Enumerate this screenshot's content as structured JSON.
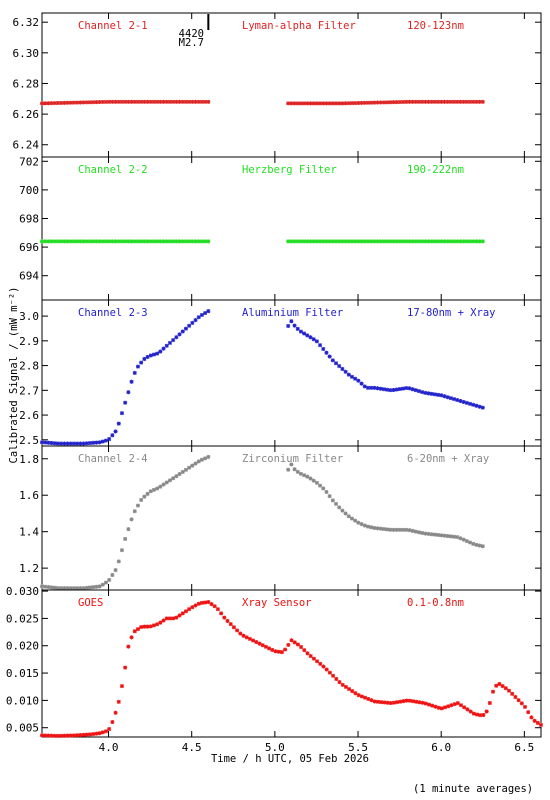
{
  "figure": {
    "ylabel": "Calibrated Signal / (mW m⁻²)",
    "xlabel": "Time / h UTC, 05 Feb 2026",
    "footnote": "(1 minute averages)",
    "event_marker": {
      "x": 4.6,
      "label_lines": [
        "4420",
        "M2.7"
      ]
    }
  },
  "chart_data": [
    {
      "type": "scatter",
      "color": "#dd2222",
      "labels": [
        "Channel 2-1",
        "Lyman-alpha Filter",
        "120-123nm"
      ],
      "ylim": [
        6.232,
        6.326
      ],
      "yticks": [
        6.24,
        6.26,
        6.28,
        6.3,
        6.32
      ],
      "tick_decimals": 2,
      "segments": [
        {
          "x": [
            3.6,
            4.0,
            4.3,
            4.6
          ],
          "y": [
            6.267,
            6.268,
            6.268,
            6.268
          ]
        },
        {
          "x": [
            5.08,
            5.4,
            5.8,
            6.0,
            6.25
          ],
          "y": [
            6.267,
            6.267,
            6.268,
            6.268,
            6.268
          ]
        }
      ]
    },
    {
      "type": "scatter",
      "color": "#22dd22",
      "labels": [
        "Channel 2-2",
        "Herzberg Filter",
        "190-222nm"
      ],
      "ylim": [
        692.3,
        702.3
      ],
      "yticks": [
        694,
        696,
        698,
        700,
        702
      ],
      "tick_decimals": 0,
      "segments": [
        {
          "x": [
            3.6,
            4.6
          ],
          "y": [
            696.4,
            696.4
          ]
        },
        {
          "x": [
            5.08,
            5.6,
            6.25
          ],
          "y": [
            696.4,
            696.4,
            696.4
          ]
        }
      ]
    },
    {
      "type": "scatter",
      "color": "#2222cc",
      "labels": [
        "Channel 2-3",
        "Aluminium Filter",
        "17-80nm + Xray"
      ],
      "ylim": [
        2.475,
        3.065
      ],
      "yticks": [
        2.5,
        2.6,
        2.7,
        2.8,
        2.9,
        3.0
      ],
      "tick_decimals": 1,
      "segments": [
        {
          "x": [
            3.6,
            3.7,
            3.85,
            3.95,
            4.0,
            4.05,
            4.1,
            4.15,
            4.18,
            4.22,
            4.25,
            4.3,
            4.35,
            4.4,
            4.45,
            4.5,
            4.55,
            4.6
          ],
          "y": [
            2.49,
            2.485,
            2.485,
            2.49,
            2.5,
            2.54,
            2.65,
            2.76,
            2.8,
            2.83,
            2.84,
            2.85,
            2.88,
            2.91,
            2.94,
            2.97,
            3.0,
            3.02
          ]
        },
        {
          "x": [
            5.08,
            5.1,
            5.12,
            5.15,
            5.2,
            5.25,
            5.3,
            5.35,
            5.4,
            5.45,
            5.5,
            5.55,
            5.6,
            5.7,
            5.8,
            5.9,
            6.0,
            6.1,
            6.2,
            6.25
          ],
          "y": [
            2.96,
            2.98,
            2.96,
            2.94,
            2.92,
            2.9,
            2.86,
            2.82,
            2.79,
            2.76,
            2.74,
            2.71,
            2.71,
            2.7,
            2.71,
            2.69,
            2.68,
            2.66,
            2.64,
            2.63
          ]
        }
      ]
    },
    {
      "type": "scatter",
      "color": "#888888",
      "labels": [
        "Channel 2-4",
        "Zirconium Filter",
        "6-20nm + Xray"
      ],
      "ylim": [
        1.08,
        1.87
      ],
      "yticks": [
        1.2,
        1.4,
        1.6,
        1.8
      ],
      "tick_decimals": 1,
      "segments": [
        {
          "x": [
            3.6,
            3.7,
            3.85,
            3.95,
            4.0,
            4.05,
            4.1,
            4.15,
            4.2,
            4.25,
            4.3,
            4.35,
            4.4,
            4.45,
            4.5,
            4.55,
            4.6
          ],
          "y": [
            1.1,
            1.09,
            1.09,
            1.1,
            1.13,
            1.2,
            1.36,
            1.5,
            1.58,
            1.62,
            1.64,
            1.67,
            1.7,
            1.73,
            1.76,
            1.79,
            1.81
          ]
        },
        {
          "x": [
            5.08,
            5.1,
            5.12,
            5.15,
            5.2,
            5.25,
            5.3,
            5.35,
            5.4,
            5.45,
            5.5,
            5.55,
            5.6,
            5.7,
            5.8,
            5.9,
            6.0,
            6.1,
            6.2,
            6.25
          ],
          "y": [
            1.74,
            1.77,
            1.74,
            1.72,
            1.7,
            1.67,
            1.63,
            1.57,
            1.52,
            1.48,
            1.45,
            1.43,
            1.42,
            1.41,
            1.41,
            1.39,
            1.38,
            1.37,
            1.33,
            1.32
          ]
        }
      ]
    },
    {
      "type": "scatter",
      "color": "#ee1111",
      "labels": [
        "GOES",
        "Xray Sensor",
        "0.1-0.8nm"
      ],
      "ylim": [
        0.0033,
        0.0302
      ],
      "yticks": [
        0.005,
        0.01,
        0.015,
        0.02,
        0.025,
        0.03
      ],
      "tick_decimals": 3,
      "xlim": [
        3.6,
        6.6
      ],
      "xticks": [
        4.0,
        4.5,
        5.0,
        5.5,
        6.0,
        6.5
      ],
      "segments": [
        {
          "x": [
            3.6,
            3.7,
            3.8,
            3.9,
            3.95,
            4.0,
            4.03,
            4.06,
            4.09,
            4.12,
            4.15,
            4.2,
            4.25,
            4.3,
            4.35,
            4.4,
            4.45,
            4.5,
            4.55,
            4.6,
            4.65,
            4.7,
            4.8,
            4.9,
            5.0,
            5.05,
            5.1,
            5.15,
            5.2,
            5.3,
            5.4,
            5.5,
            5.6,
            5.7,
            5.8,
            5.9,
            6.0,
            6.05,
            6.1,
            6.15,
            6.2,
            6.25,
            6.28,
            6.32,
            6.35,
            6.4,
            6.45,
            6.5,
            6.55,
            6.6
          ],
          "y": [
            0.0036,
            0.0035,
            0.0036,
            0.0038,
            0.004,
            0.0045,
            0.0065,
            0.0095,
            0.014,
            0.02,
            0.0225,
            0.0235,
            0.0235,
            0.024,
            0.025,
            0.025,
            0.026,
            0.027,
            0.0278,
            0.028,
            0.027,
            0.025,
            0.022,
            0.0205,
            0.019,
            0.0188,
            0.021,
            0.02,
            0.0185,
            0.016,
            0.013,
            0.011,
            0.0098,
            0.0095,
            0.01,
            0.0095,
            0.0085,
            0.009,
            0.0095,
            0.0085,
            0.0075,
            0.0072,
            0.0082,
            0.0125,
            0.013,
            0.012,
            0.0105,
            0.009,
            0.0065,
            0.0055
          ]
        }
      ]
    }
  ]
}
